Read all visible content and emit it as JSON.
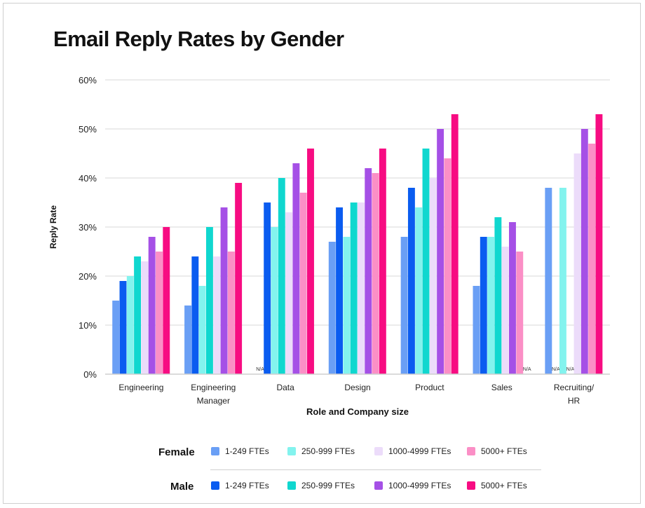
{
  "title": "Email Reply Rates by Gender",
  "chart_data": {
    "type": "bar",
    "title": "Email Reply Rates by Gender",
    "xlabel": "Role and Company size",
    "ylabel": "Reply Rate",
    "ylim": [
      0,
      60
    ],
    "yticks": [
      "0%",
      "10%",
      "20%",
      "30%",
      "40%",
      "50%",
      "60%"
    ],
    "grid": true,
    "categories": [
      [
        "Engineering"
      ],
      [
        "Engineering",
        "Manager"
      ],
      [
        "Data"
      ],
      [
        "Design"
      ],
      [
        "Product"
      ],
      [
        "Sales"
      ],
      [
        "Recruiting/",
        "HR"
      ]
    ],
    "na_label": "N/A",
    "series_order": [
      "f1",
      "m1",
      "f2",
      "m2",
      "f3",
      "m3",
      "f4",
      "m4"
    ],
    "series": {
      "f1": {
        "name": "1-249 FTEs",
        "group": "Female",
        "color": "#6a9ff5",
        "values": [
          15,
          14,
          null,
          27,
          28,
          18,
          38
        ]
      },
      "m1": {
        "name": "1-249 FTEs",
        "group": "Male",
        "color": "#0a5cf0",
        "values": [
          19,
          24,
          35,
          34,
          38,
          28,
          null
        ]
      },
      "f2": {
        "name": "250-999 FTEs",
        "group": "Female",
        "color": "#83f3ee",
        "values": [
          20,
          18,
          30,
          28,
          34,
          28,
          38
        ]
      },
      "m2": {
        "name": "250-999 FTEs",
        "group": "Male",
        "color": "#10d7cf",
        "values": [
          24,
          30,
          40,
          35,
          46,
          32,
          null
        ]
      },
      "f3": {
        "name": "1000-4999 FTEs",
        "group": "Female",
        "color": "#ecdcfa",
        "values": [
          23,
          24,
          33,
          35,
          40,
          26,
          45
        ]
      },
      "m3": {
        "name": "1000-4999 FTEs",
        "group": "Male",
        "color": "#a550e6",
        "values": [
          28,
          34,
          43,
          42,
          50,
          31,
          50
        ]
      },
      "f4": {
        "name": "5000+ FTEs",
        "group": "Female",
        "color": "#fb8fc6",
        "values": [
          25,
          25,
          37,
          41,
          44,
          25,
          47
        ]
      },
      "m4": {
        "name": "5000+ FTEs",
        "group": "Male",
        "color": "#f70c82",
        "values": [
          30,
          39,
          46,
          46,
          53,
          null,
          53
        ]
      }
    }
  },
  "legend": {
    "female": {
      "label": "Female",
      "items": [
        {
          "label": "1-249 FTEs",
          "color": "#6a9ff5"
        },
        {
          "label": "250-999 FTEs",
          "color": "#83f3ee"
        },
        {
          "label": "1000-4999 FTEs",
          "color": "#ecdcfa"
        },
        {
          "label": "5000+ FTEs",
          "color": "#fb8fc6"
        }
      ]
    },
    "male": {
      "label": "Male",
      "items": [
        {
          "label": "1-249 FTEs",
          "color": "#0a5cf0"
        },
        {
          "label": "250-999 FTEs",
          "color": "#10d7cf"
        },
        {
          "label": "1000-4999 FTEs",
          "color": "#a550e6"
        },
        {
          "label": "5000+ FTEs",
          "color": "#f70c82"
        }
      ]
    }
  }
}
